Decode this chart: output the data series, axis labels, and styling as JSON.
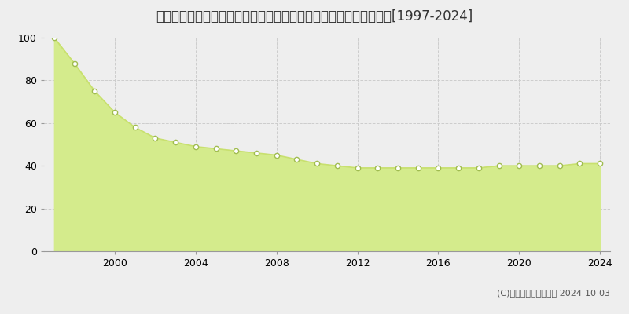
{
  "title": "千葉県松戸市小金きよしケ丘４丁目３番１１　基準地価　地価推移[1997-2024]",
  "years": [
    1997,
    1998,
    1999,
    2000,
    2001,
    2002,
    2003,
    2004,
    2005,
    2006,
    2007,
    2008,
    2009,
    2010,
    2011,
    2012,
    2013,
    2014,
    2015,
    2016,
    2017,
    2018,
    2019,
    2020,
    2021,
    2022,
    2023,
    2024
  ],
  "values": [
    100,
    88,
    75,
    65,
    58,
    53,
    51,
    49,
    48,
    47,
    46,
    45,
    43,
    41,
    40,
    39,
    39,
    39,
    39,
    39,
    39,
    39,
    40,
    40,
    40,
    40,
    41,
    41
  ],
  "line_color": "#c8e06e",
  "fill_color": "#d4eb8c",
  "marker_color": "#ffffff",
  "marker_edge_color": "#a0bc50",
  "bg_color": "#eeeeee",
  "plot_bg_color": "#eeeeee",
  "grid_color": "#cccccc",
  "ylim": [
    0,
    100
  ],
  "yticks": [
    0,
    20,
    40,
    60,
    80,
    100
  ],
  "xticks": [
    2000,
    2004,
    2008,
    2012,
    2016,
    2020,
    2024
  ],
  "copyright_text": "(C)土地価格ドットコム 2024-10-03",
  "title_fontsize": 12,
  "tick_fontsize": 9,
  "legend_fontsize": 9,
  "copyright_fontsize": 8
}
